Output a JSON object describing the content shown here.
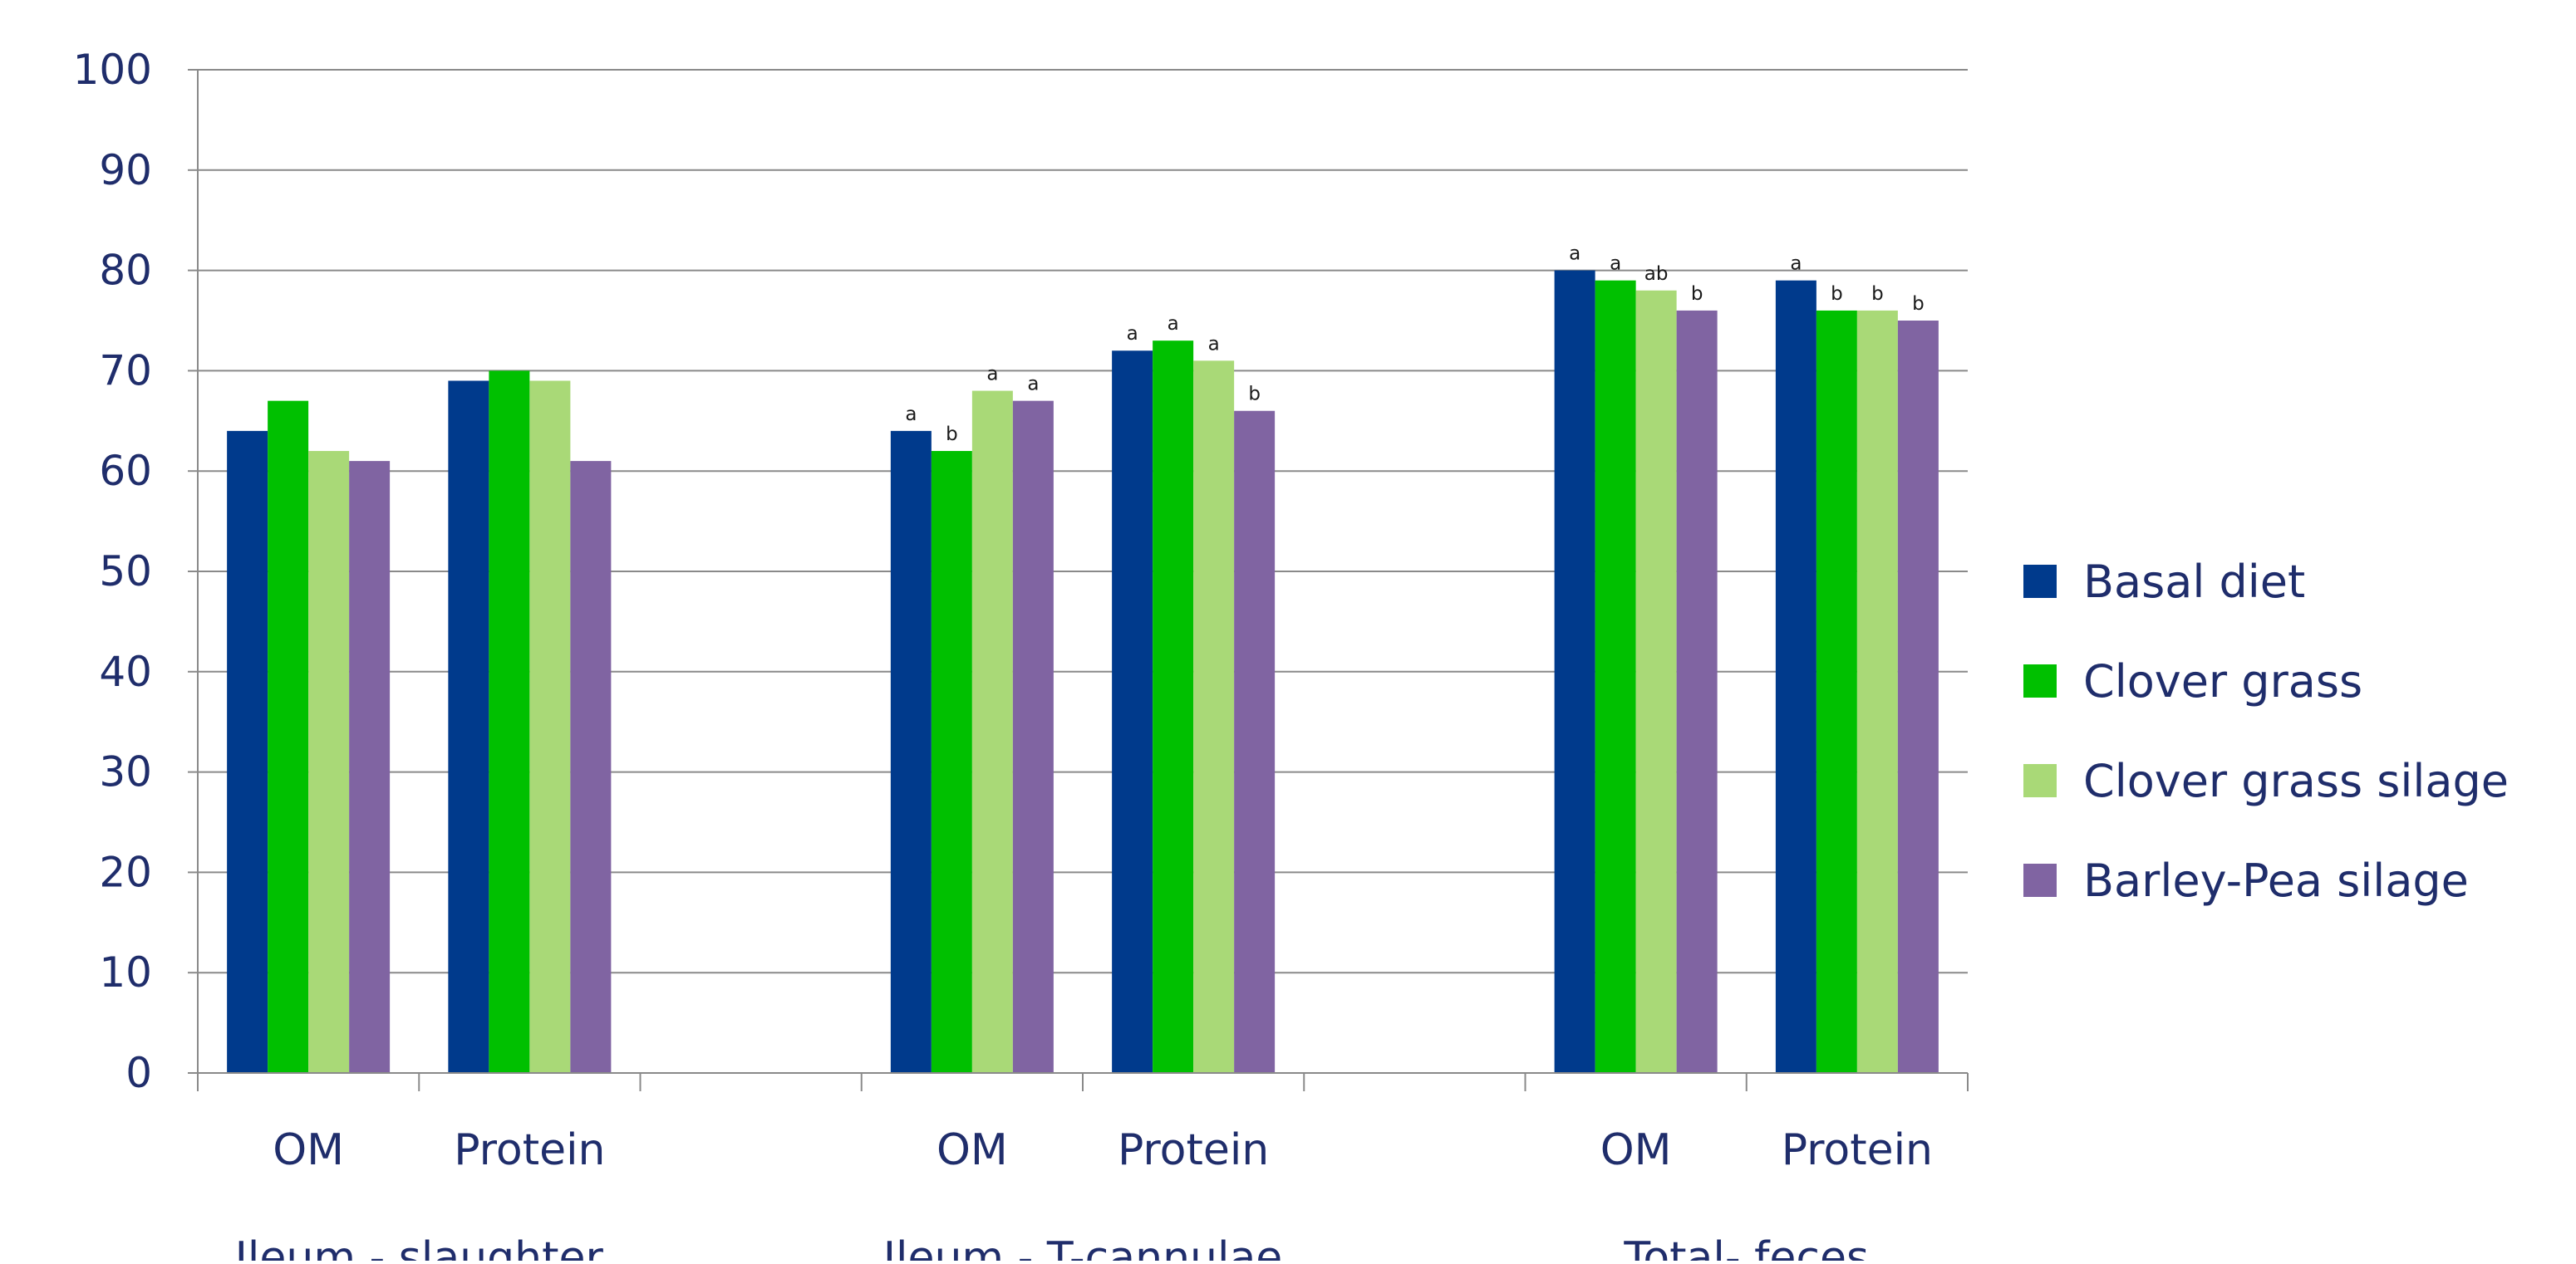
{
  "chart_data": {
    "type": "bar",
    "ylim": [
      0,
      100
    ],
    "yticks": [
      "0",
      "10",
      "20",
      "30",
      "40",
      "50",
      "60",
      "70",
      "80",
      "90",
      "100"
    ],
    "grid": true,
    "legend_position": "right",
    "groups": [
      {
        "label": "Ileum - slaughter",
        "categories": [
          "OM",
          "Protein"
        ]
      },
      {
        "label": "Ileum - T-cannulae",
        "categories": [
          "OM",
          "Protein"
        ]
      },
      {
        "label": "Total- feces",
        "categories": [
          "OM",
          "Protein"
        ]
      }
    ],
    "series": [
      {
        "name": "Basal diet",
        "color": "#003a8c",
        "values": [
          64,
          69,
          64,
          72,
          80,
          79
        ],
        "annotations": [
          "",
          "",
          "a",
          "a",
          "a",
          "a"
        ]
      },
      {
        "name": "Clover grass",
        "color": "#00c000",
        "values": [
          67,
          70,
          62,
          73,
          79,
          76
        ],
        "annotations": [
          "",
          "",
          "b",
          "a",
          "a",
          "b"
        ]
      },
      {
        "name": "Clover grass silage",
        "color": "#a9d977",
        "values": [
          62,
          69,
          68,
          71,
          78,
          76
        ],
        "annotations": [
          "",
          "",
          "a",
          "a",
          "ab",
          "b"
        ]
      },
      {
        "name": "Barley-Pea silage",
        "color": "#8064a2",
        "values": [
          61,
          61,
          67,
          66,
          76,
          75
        ],
        "annotations": [
          "",
          "",
          "a",
          "b",
          "b",
          "b"
        ]
      }
    ]
  }
}
